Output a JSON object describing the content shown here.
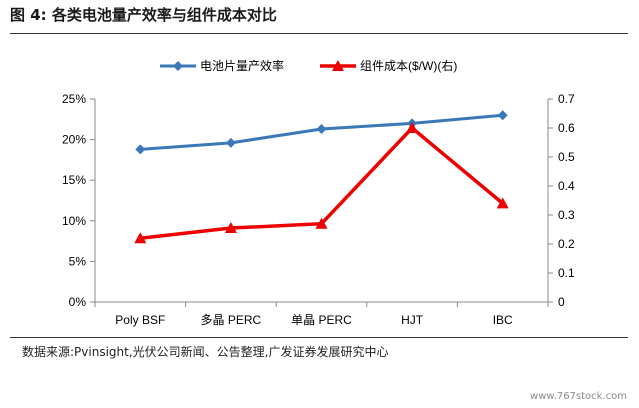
{
  "figure": {
    "title": "图 4:  各类电池量产效率与组件成本对比",
    "source": "数据来源:Pvinsight,光伏公司新闻、公告整理,广发证券发展研究中心",
    "watermark": "www.767stock.com"
  },
  "chart_data": {
    "type": "line",
    "categories": [
      "Poly BSF",
      "多晶 PERC",
      "单晶 PERC",
      "HJT",
      "IBC"
    ],
    "series": [
      {
        "name": "电池片量产效率",
        "axis": "left",
        "color": "#3a78b8",
        "marker": "diamond",
        "values": [
          0.188,
          0.196,
          0.213,
          0.22,
          0.23
        ]
      },
      {
        "name": "组件成本($/W)(右)",
        "axis": "right",
        "color": "#ee0000",
        "marker": "triangle",
        "values": [
          0.22,
          0.255,
          0.27,
          0.6,
          0.34
        ]
      }
    ],
    "y_left": {
      "min": 0,
      "max": 0.25,
      "ticks": [
        0,
        0.05,
        0.1,
        0.15,
        0.2,
        0.25
      ],
      "tick_labels": [
        "0%",
        "5%",
        "10%",
        "15%",
        "20%",
        "25%"
      ]
    },
    "y_right": {
      "min": 0,
      "max": 0.7,
      "ticks": [
        0,
        0.1,
        0.2,
        0.3,
        0.4,
        0.5,
        0.6,
        0.7
      ],
      "tick_labels": [
        "0",
        "0.1",
        "0.2",
        "0.3",
        "0.4",
        "0.5",
        "0.6",
        "0.7"
      ]
    },
    "legend_position": "top-center",
    "grid": false
  }
}
